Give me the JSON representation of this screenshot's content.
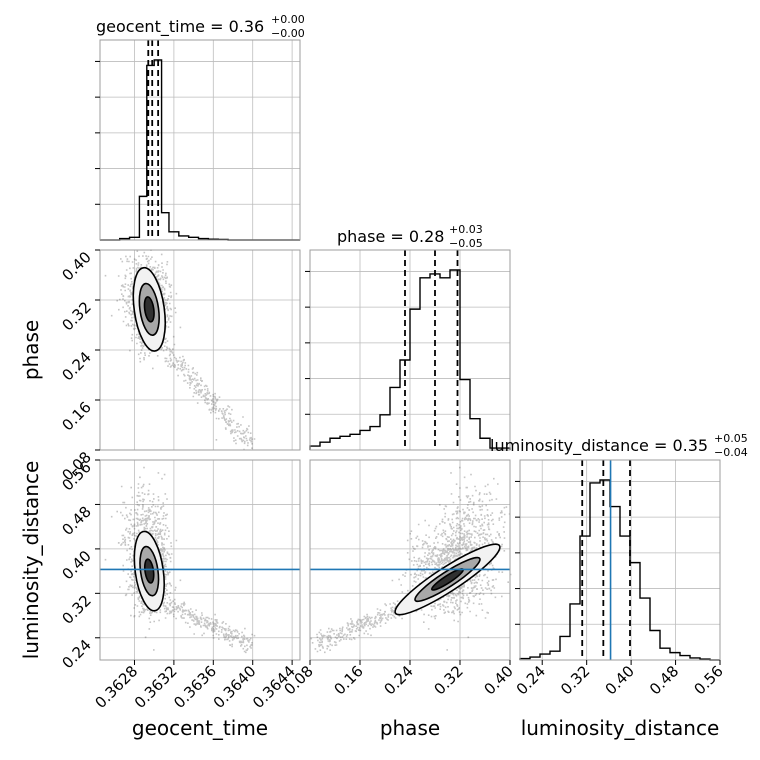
{
  "chart_data": {
    "type": "corner",
    "grid": true,
    "parameters": [
      "geocent_time",
      "phase",
      "luminosity_distance"
    ],
    "injection": {
      "luminosity_distance": 0.363
    },
    "titles": {
      "geocent_time": {
        "label": "geocent_time = 0.36",
        "plus": "+0.00",
        "minus": "−0.00"
      },
      "phase": {
        "label": "phase = 0.28",
        "plus": "+0.03",
        "minus": "−0.05"
      },
      "luminosity_distance": {
        "label": "luminosity_distance = 0.35",
        "plus": "+0.05",
        "minus": "−0.04"
      }
    },
    "axes": {
      "geocent_time": {
        "label": "geocent_time",
        "range": [
          0.36245,
          0.36448
        ],
        "ticks": [
          0.3628,
          0.3632,
          0.3636,
          0.364,
          0.3644
        ],
        "tick_labels": [
          "0.3628",
          "0.3632",
          "0.3636",
          "0.3640",
          "0.3644"
        ],
        "quantiles": [
          0.36294,
          0.36298,
          0.36304
        ]
      },
      "phase": {
        "label": "phase",
        "range": [
          0.08,
          0.4
        ],
        "ticks": [
          0.08,
          0.16,
          0.24,
          0.32,
          0.4
        ],
        "tick_labels": [
          "0.08",
          "0.16",
          "0.24",
          "0.32",
          "0.40"
        ],
        "quantiles": [
          0.232,
          0.28,
          0.316
        ]
      },
      "luminosity_distance": {
        "label": "luminosity_distance",
        "range": [
          0.2,
          0.56
        ],
        "ticks": [
          0.24,
          0.32,
          0.4,
          0.48,
          0.56
        ],
        "tick_labels": [
          "0.24",
          "0.32",
          "0.40",
          "0.48",
          "0.56"
        ],
        "quantiles": [
          0.312,
          0.35,
          0.398
        ]
      }
    },
    "histograms": {
      "geocent_time": {
        "bin_edges": [
          0.36245,
          0.36255,
          0.36265,
          0.36275,
          0.36285,
          0.362925,
          0.363,
          0.363075,
          0.36315,
          0.36325,
          0.36335,
          0.36345,
          0.36355,
          0.36365,
          0.36375,
          0.36385,
          0.36395,
          0.36405,
          0.36415,
          0.36425,
          0.36435,
          0.36448
        ],
        "counts": [
          0,
          0,
          0.5,
          1,
          16,
          64,
          66,
          10,
          3,
          1.5,
          1,
          0.5,
          0.3,
          0.2,
          0,
          0,
          0,
          0,
          0,
          0,
          0
        ]
      },
      "phase": {
        "bin_edges": [
          0.08,
          0.096,
          0.112,
          0.128,
          0.144,
          0.16,
          0.176,
          0.192,
          0.208,
          0.224,
          0.24,
          0.256,
          0.272,
          0.288,
          0.304,
          0.32,
          0.336,
          0.352,
          0.368,
          0.384,
          0.4
        ],
        "counts": [
          1,
          2,
          3,
          3.5,
          4,
          5,
          6,
          9,
          16,
          23,
          36,
          44,
          45,
          44,
          46,
          18,
          8,
          3,
          0.5,
          0.5
        ]
      },
      "luminosity_distance": {
        "bin_edges": [
          0.2,
          0.218,
          0.236,
          0.254,
          0.272,
          0.29,
          0.308,
          0.326,
          0.344,
          0.362,
          0.38,
          0.398,
          0.416,
          0.434,
          0.452,
          0.47,
          0.488,
          0.506,
          0.524,
          0.542,
          0.56
        ],
        "counts": [
          0.5,
          1,
          2,
          3,
          8,
          19,
          42,
          60,
          61,
          52,
          42,
          33,
          21,
          10,
          4,
          2.5,
          1.5,
          0.7,
          0.3,
          0
        ]
      }
    }
  }
}
